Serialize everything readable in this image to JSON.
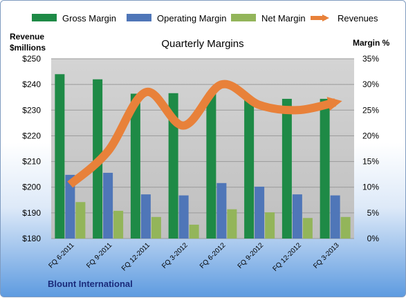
{
  "chart_data": {
    "type": "bar",
    "title": "Quarterly Margins",
    "company": "Blount International",
    "left_axis_title_1": "Revenue",
    "left_axis_title_2": "$millions",
    "right_axis_title": "Margin %",
    "categories": [
      "FQ 6-2011",
      "FQ 9-2011",
      "FQ 12-2011",
      "FQ 3-2012",
      "FQ 6-2012",
      "FQ 9-2012",
      "FQ 12-2012",
      "FQ 3-2013"
    ],
    "left_ylim": [
      180,
      250
    ],
    "left_ticks": [
      "$180",
      "$190",
      "$200",
      "$210",
      "$220",
      "$230",
      "$240",
      "$250"
    ],
    "right_ylim": [
      0,
      35
    ],
    "right_ticks": [
      "0%",
      "5%",
      "10%",
      "15%",
      "20%",
      "25%",
      "30%",
      "35%"
    ],
    "series": [
      {
        "name": "Gross Margin",
        "type": "bar",
        "axis": "right",
        "color": "#1e8a46",
        "values": [
          32.0,
          31.0,
          28.2,
          28.3,
          28.4,
          27.4,
          27.2,
          27.2
        ]
      },
      {
        "name": "Operating Margin",
        "type": "bar",
        "axis": "right",
        "color": "#4f76b8",
        "values": [
          12.4,
          12.8,
          8.6,
          8.4,
          10.8,
          10.1,
          8.6,
          8.4
        ]
      },
      {
        "name": "Net Margin",
        "type": "bar",
        "axis": "right",
        "color": "#93b55a",
        "values": [
          7.1,
          5.4,
          4.2,
          2.7,
          5.7,
          5.1,
          4.0,
          4.2
        ]
      },
      {
        "name": "Revenues",
        "type": "line",
        "axis": "left",
        "color": "#e8813a",
        "values": [
          201,
          214,
          237,
          224,
          240,
          232,
          230,
          233
        ]
      }
    ],
    "grid": true,
    "legend_position": "top"
  }
}
